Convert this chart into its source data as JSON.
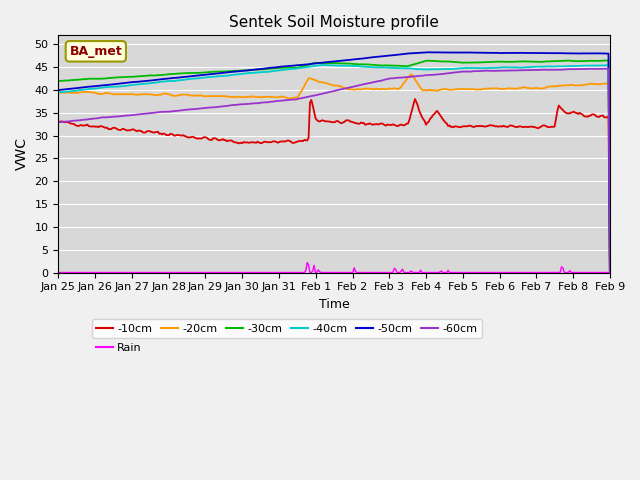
{
  "title": "Sentek Soil Moisture profile",
  "xlabel": "Time",
  "ylabel": "VWC",
  "legend_label": "BA_met",
  "ylim": [
    0,
    52
  ],
  "yticks": [
    0,
    5,
    10,
    15,
    20,
    25,
    30,
    35,
    40,
    45,
    50
  ],
  "axes_facecolor": "#d8d8d8",
  "fig_facecolor": "#f0f0f0",
  "series_colors": {
    "-10cm": "#dd0000",
    "-20cm": "#ff9900",
    "-30cm": "#00bb00",
    "-40cm": "#00cccc",
    "-50cm": "#0000cc",
    "-60cm": "#9933cc",
    "Rain": "#ff00ff"
  },
  "xtick_labels": [
    "Jan 25",
    "Jan 26",
    "Jan 27",
    "Jan 28",
    "Jan 29",
    "Jan 30",
    "Jan 31",
    "Feb 1",
    "Feb 2",
    "Feb 3",
    "Feb 4",
    "Feb 5",
    "Feb 6",
    "Feb 7",
    "Feb 8",
    "Feb 9"
  ],
  "n_points": 400
}
